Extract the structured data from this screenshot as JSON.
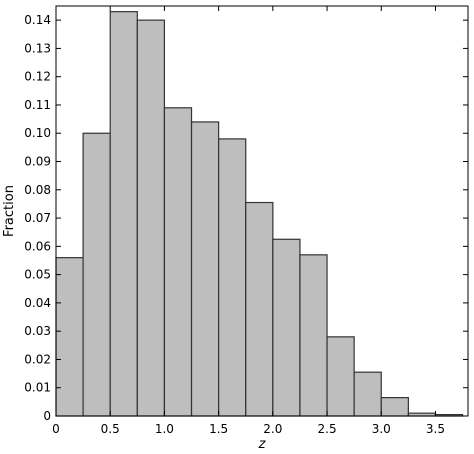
{
  "chart_data": {
    "type": "bar",
    "histogram": true,
    "bin_edges": [
      0,
      0.25,
      0.5,
      0.75,
      1.0,
      1.25,
      1.5,
      1.75,
      2.0,
      2.25,
      2.5,
      2.75,
      3.0,
      3.25,
      3.5,
      3.75
    ],
    "values": [
      0.056,
      0.1,
      0.143,
      0.14,
      0.109,
      0.104,
      0.098,
      0.0755,
      0.0625,
      0.057,
      0.028,
      0.0155,
      0.0065,
      0.001,
      0.0005
    ],
    "xlabel": "z",
    "ylabel": "Fraction",
    "xlim": [
      0,
      3.8
    ],
    "ylim": [
      0,
      0.145
    ],
    "xticks": [
      0,
      0.5,
      1.0,
      1.5,
      2.0,
      2.5,
      3.0,
      3.5
    ],
    "xtick_labels": [
      "0",
      "0.5",
      "1.0",
      "1.5",
      "2.0",
      "2.5",
      "3.0",
      "3.5"
    ],
    "yticks": [
      0,
      0.01,
      0.02,
      0.03,
      0.04,
      0.05,
      0.06,
      0.07,
      0.08,
      0.09,
      0.1,
      0.11,
      0.12,
      0.13,
      0.14
    ],
    "ytick_labels": [
      "0",
      "0.01",
      "0.02",
      "0.03",
      "0.04",
      "0.05",
      "0.06",
      "0.07",
      "0.08",
      "0.09",
      "0.10",
      "0.11",
      "0.12",
      "0.13",
      "0.14"
    ],
    "grid": false,
    "colors": {
      "bar_fill": "#bebebe",
      "bar_edge": "#333333",
      "axis": "#000000"
    }
  }
}
